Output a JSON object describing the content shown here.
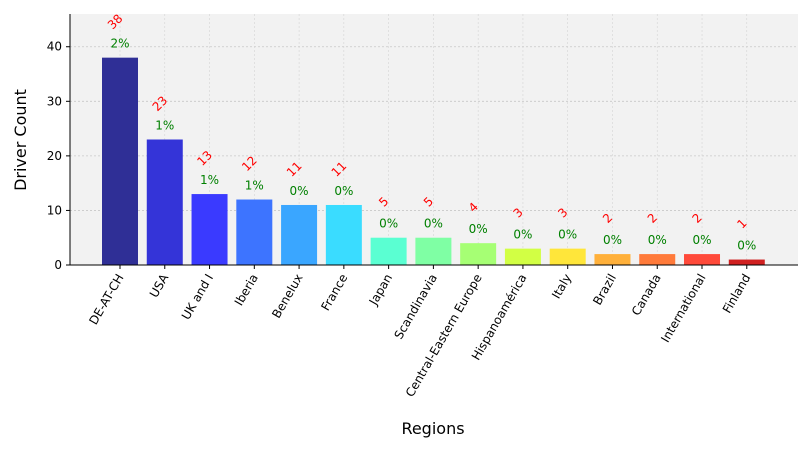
{
  "chart_data": {
    "type": "bar",
    "xlabel": "Regions",
    "ylabel": "Driver Count",
    "ylim": [
      0,
      46
    ],
    "yticks": [
      0,
      10,
      20,
      30,
      40
    ],
    "grid": true,
    "categories": [
      "DE-AT-CH",
      "USA",
      "UK and I",
      "Iberia",
      "Benelux",
      "France",
      "Japan",
      "Scandinavia",
      "Central-Eastern Europe",
      "Hispanoamérica",
      "Italy",
      "Brazil",
      "Canada",
      "International",
      "Finland"
    ],
    "values": [
      38,
      23,
      13,
      12,
      11,
      11,
      5,
      5,
      4,
      3,
      3,
      2,
      2,
      2,
      1
    ],
    "count_labels": [
      "38",
      "23",
      "13",
      "12",
      "11",
      "11",
      "5",
      "5",
      "4",
      "3",
      "3",
      "2",
      "2",
      "2",
      "1"
    ],
    "percent_labels": [
      "2%",
      "1%",
      "1%",
      "1%",
      "0%",
      "0%",
      "0%",
      "0%",
      "0%",
      "0%",
      "0%",
      "0%",
      "0%",
      "0%",
      "0%"
    ],
    "bar_colors": [
      "#2f2f96",
      "#3434d8",
      "#3a3aff",
      "#3d74ff",
      "#3aa6ff",
      "#3adcff",
      "#5affd2",
      "#7fffa4",
      "#a6ff74",
      "#d2ff44",
      "#ffe63a",
      "#ffb03a",
      "#ff7a3a",
      "#ff4a3a",
      "#d02020"
    ]
  }
}
